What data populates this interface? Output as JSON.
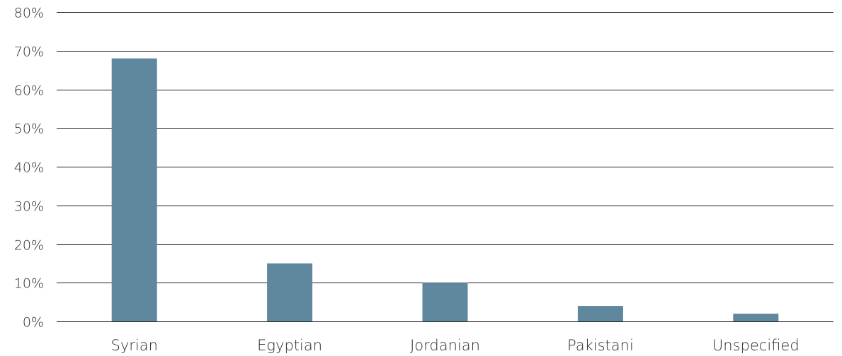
{
  "chart_data": {
    "type": "bar",
    "categories": [
      "Syrian",
      "Egyptian",
      "Jordanian",
      "Pakistani",
      "Unspecified"
    ],
    "values": [
      68,
      15,
      10,
      4,
      2
    ],
    "ylim": [
      0,
      80
    ],
    "y_ticks": [
      "0%",
      "10%",
      "20%",
      "30%",
      "40%",
      "50%",
      "60%",
      "70%",
      "80%"
    ],
    "y_tick_values": [
      0,
      10,
      20,
      30,
      40,
      50,
      60,
      70,
      80
    ],
    "grid": true,
    "legend": "none",
    "bar_color": "#5f879d"
  }
}
